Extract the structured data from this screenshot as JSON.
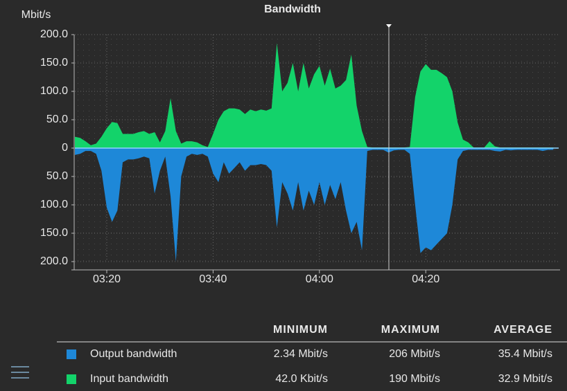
{
  "chart_data": {
    "type": "area",
    "title": "Bandwidth",
    "y_label": "Mbit/s",
    "x": [
      "03:14",
      "03:15",
      "03:16",
      "03:17",
      "03:18",
      "03:19",
      "03:20",
      "03:21",
      "03:22",
      "03:23",
      "03:24",
      "03:25",
      "03:26",
      "03:27",
      "03:28",
      "03:29",
      "03:30",
      "03:31",
      "03:32",
      "03:33",
      "03:34",
      "03:35",
      "03:36",
      "03:37",
      "03:38",
      "03:39",
      "03:40",
      "03:41",
      "03:42",
      "03:43",
      "03:44",
      "03:45",
      "03:46",
      "03:47",
      "03:48",
      "03:49",
      "03:50",
      "03:51",
      "03:52",
      "03:53",
      "03:54",
      "03:55",
      "03:56",
      "03:57",
      "03:58",
      "03:59",
      "04:00",
      "04:01",
      "04:02",
      "04:03",
      "04:04",
      "04:05",
      "04:06",
      "04:07",
      "04:08",
      "04:09",
      "04:10",
      "04:11",
      "04:12",
      "04:13",
      "04:14",
      "04:15",
      "04:16",
      "04:17",
      "04:18",
      "04:19",
      "04:20",
      "04:21",
      "04:22",
      "04:23",
      "04:24",
      "04:25",
      "04:26",
      "04:27",
      "04:28",
      "04:29",
      "04:30",
      "04:31",
      "04:32",
      "04:33",
      "04:34",
      "04:35",
      "04:36",
      "04:37",
      "04:38",
      "04:39",
      "04:40",
      "04:41",
      "04:42",
      "04:43",
      "04:44"
    ],
    "xlim": [
      "03:14",
      "04:45"
    ],
    "xticks": [
      "03:20",
      "03:40",
      "04:00",
      "04:20"
    ],
    "ylim": [
      -200,
      200
    ],
    "yticks": [
      {
        "value": 200,
        "label": "200.0"
      },
      {
        "value": 150,
        "label": "150.0"
      },
      {
        "value": 100,
        "label": "100.0"
      },
      {
        "value": 50,
        "label": "50.0"
      },
      0,
      {
        "value": -50,
        "label": "50.0"
      },
      {
        "value": -100,
        "label": "100.0"
      },
      {
        "value": -150,
        "label": "150.0"
      },
      {
        "value": -200,
        "label": "200.0"
      }
    ],
    "grid": true,
    "series": [
      {
        "name": "Output bandwidth",
        "color": "#1e88d8",
        "values": [
          -12,
          -10,
          -5,
          -5,
          -10,
          -40,
          -105,
          -130,
          -110,
          -25,
          -20,
          -20,
          -18,
          -15,
          -18,
          -80,
          -40,
          -15,
          -85,
          -200,
          -50,
          -15,
          -10,
          -12,
          -10,
          -15,
          -45,
          -60,
          -25,
          -45,
          -35,
          -25,
          -40,
          -30,
          -30,
          -28,
          -30,
          -40,
          -140,
          -60,
          -80,
          -110,
          -60,
          -110,
          -75,
          -100,
          -60,
          -100,
          -65,
          -90,
          -60,
          -110,
          -150,
          -130,
          -180,
          -5,
          -3,
          -3,
          -3,
          -8,
          -4,
          -3,
          -3,
          -10,
          -100,
          -185,
          -175,
          -180,
          -170,
          -160,
          -150,
          -100,
          -20,
          -5,
          -3,
          -3,
          -3,
          -3,
          -3,
          -5,
          -6,
          -3,
          -4,
          -3,
          -3,
          -3,
          -3,
          -3,
          -5,
          -3,
          -3
        ]
      },
      {
        "name": "Input bandwidth",
        "color": "#13d36a",
        "values": [
          20,
          18,
          12,
          5,
          8,
          20,
          35,
          46,
          44,
          25,
          25,
          25,
          28,
          30,
          25,
          28,
          10,
          30,
          88,
          30,
          8,
          12,
          12,
          10,
          5,
          2,
          25,
          50,
          65,
          70,
          70,
          68,
          60,
          68,
          65,
          68,
          66,
          70,
          185,
          100,
          115,
          150,
          100,
          150,
          105,
          130,
          145,
          110,
          140,
          105,
          110,
          120,
          165,
          75,
          30,
          2,
          1,
          1,
          1,
          1,
          1,
          1,
          1,
          2,
          90,
          135,
          148,
          138,
          138,
          132,
          125,
          100,
          45,
          15,
          10,
          1,
          1,
          1,
          12,
          3,
          1,
          1,
          1,
          1,
          1,
          1,
          1,
          1,
          1,
          1,
          1
        ]
      }
    ],
    "stats": {
      "headers": [
        "MINIMUM",
        "MAXIMUM",
        "AVERAGE"
      ],
      "rows": [
        [
          "2.34 Mbit/s",
          "206 Mbit/s",
          "35.4 Mbit/s"
        ],
        [
          "42.0 Kbit/s",
          "190 Mbit/s",
          "32.9 Mbit/s"
        ]
      ]
    }
  }
}
